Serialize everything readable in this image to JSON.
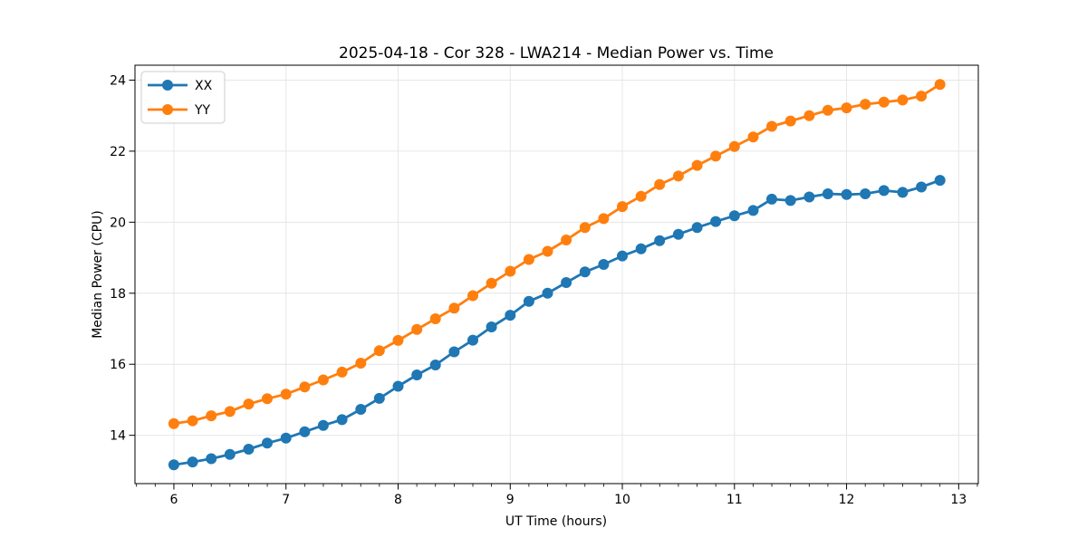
{
  "title": "2025-04-18 - Cor 328 - LWA214 - Median Power vs. Time",
  "chart_data": {
    "type": "line",
    "title": "2025-04-18 - Cor 328 - LWA214 - Median Power vs. Time",
    "xlabel": "UT Time (hours)",
    "ylabel": "Median Power (CPU)",
    "xlim": [
      5.653,
      13.175
    ],
    "ylim": [
      12.64,
      24.42
    ],
    "x_ticks": [
      6,
      7,
      8,
      9,
      10,
      11,
      12,
      13
    ],
    "y_ticks": [
      14,
      16,
      18,
      20,
      22,
      24
    ],
    "x_minor_per_major": 6,
    "grid": true,
    "grid_color": "#e6e6e6",
    "legend_position": "upper left",
    "x": [
      6.0,
      6.167,
      6.333,
      6.5,
      6.667,
      6.833,
      7.0,
      7.167,
      7.333,
      7.5,
      7.667,
      7.833,
      8.0,
      8.167,
      8.333,
      8.5,
      8.667,
      8.833,
      9.0,
      9.167,
      9.333,
      9.5,
      9.667,
      9.833,
      10.0,
      10.167,
      10.333,
      10.5,
      10.667,
      10.833,
      11.0,
      11.167,
      11.333,
      11.5,
      11.667,
      11.833,
      12.0,
      12.167,
      12.333,
      12.5,
      12.667,
      12.833
    ],
    "series": [
      {
        "name": "XX",
        "color": "#1f77b4",
        "values": [
          13.17,
          13.25,
          13.34,
          13.46,
          13.61,
          13.78,
          13.92,
          14.1,
          14.28,
          14.44,
          14.73,
          15.04,
          15.38,
          15.7,
          15.98,
          16.35,
          16.68,
          17.05,
          17.38,
          17.77,
          18.0,
          18.3,
          18.6,
          18.81,
          19.05,
          19.25,
          19.48,
          19.66,
          19.85,
          20.02,
          20.18,
          20.33,
          20.65,
          20.61,
          20.71,
          20.8,
          20.78,
          20.8,
          20.89,
          20.84,
          20.99,
          21.18
        ]
      },
      {
        "name": "YY",
        "color": "#ff7f0e",
        "values": [
          14.33,
          14.41,
          14.55,
          14.67,
          14.88,
          15.03,
          15.16,
          15.36,
          15.56,
          15.78,
          16.03,
          16.38,
          16.67,
          16.98,
          17.28,
          17.58,
          17.93,
          18.28,
          18.62,
          18.95,
          19.18,
          19.5,
          19.85,
          20.1,
          20.44,
          20.73,
          21.06,
          21.3,
          21.6,
          21.86,
          22.13,
          22.4,
          22.7,
          22.85,
          23.0,
          23.15,
          23.22,
          23.32,
          23.38,
          23.44,
          23.55,
          23.88
        ]
      }
    ]
  }
}
